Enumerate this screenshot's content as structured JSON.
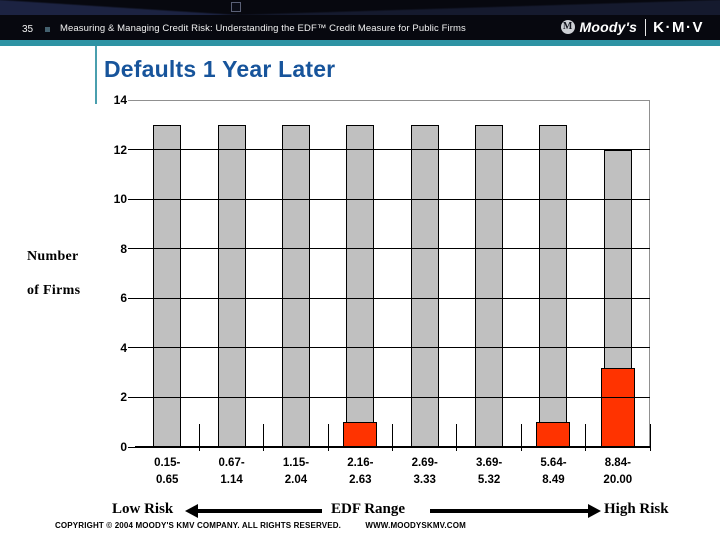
{
  "header": {
    "page_number": "35",
    "title": "Measuring & Managing Credit Risk: Understanding the EDF™ Credit Measure for Public Firms",
    "logo": {
      "badge": "M",
      "moodys": "Moody's",
      "kmv": "K·M·V"
    }
  },
  "slide_title": "Defaults 1 Year Later",
  "chart_data": {
    "type": "bar",
    "title": "Defaults 1 Year Later",
    "ylabel_lines": [
      "Number",
      "of Firms"
    ],
    "xlabel": "EDF Range",
    "ylim": [
      0,
      14
    ],
    "yticks": [
      0,
      2,
      4,
      6,
      8,
      10,
      12,
      14
    ],
    "grid": true,
    "legend": "none",
    "categories": [
      "0.15-0.65",
      "0.67-1.14",
      "1.15-2.04",
      "2.16-2.63",
      "2.69-3.33",
      "3.69-5.32",
      "5.64-8.49",
      "8.84-20.00"
    ],
    "category_label_lines": [
      [
        "0.15-",
        "0.65"
      ],
      [
        "0.67-",
        "1.14"
      ],
      [
        "1.15-",
        "2.04"
      ],
      [
        "2.16-",
        "2.63"
      ],
      [
        "2.69-",
        "3.33"
      ],
      [
        "3.69-",
        "5.32"
      ],
      [
        "5.64-",
        "8.49"
      ],
      [
        "8.84-",
        "20.00"
      ]
    ],
    "series": [
      {
        "name": "Number of Firms",
        "color": "#C0C0C0",
        "values": [
          13,
          13,
          13,
          13,
          13,
          13,
          13,
          12
        ]
      },
      {
        "name": "Defaults 1 Year Later",
        "color": "#FF3300",
        "values": [
          0,
          0,
          0,
          1,
          0,
          0,
          1,
          3.2
        ]
      }
    ]
  },
  "risk_scale": {
    "low": "Low Risk",
    "mid": "EDF Range",
    "high": "High Risk"
  },
  "footer": {
    "copyright": "COPYRIGHT © 2004 MOODY'S KMV COMPANY. ALL RIGHTS RESERVED.",
    "website": "WWW.MOODYSKMV.COM"
  },
  "colors": {
    "header_bg": "#07080F",
    "accent_teal": "#2E93A4",
    "title_blue": "#17549B",
    "bar_gray": "#C0C0C0",
    "bar_red": "#FF3300"
  }
}
